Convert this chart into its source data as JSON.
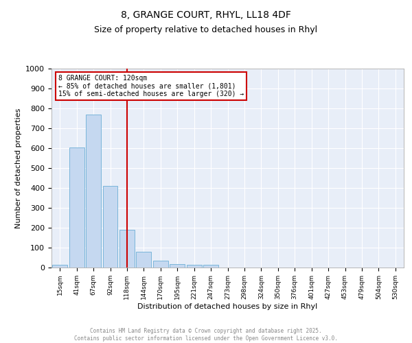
{
  "title_line1": "8, GRANGE COURT, RHYL, LL18 4DF",
  "title_line2": "Size of property relative to detached houses in Rhyl",
  "xlabel": "Distribution of detached houses by size in Rhyl",
  "ylabel": "Number of detached properties",
  "bar_labels": [
    "15sqm",
    "41sqm",
    "67sqm",
    "92sqm",
    "118sqm",
    "144sqm",
    "170sqm",
    "195sqm",
    "221sqm",
    "247sqm",
    "273sqm",
    "298sqm",
    "324sqm",
    "350sqm",
    "376sqm",
    "401sqm",
    "427sqm",
    "453sqm",
    "479sqm",
    "504sqm",
    "530sqm"
  ],
  "bar_values": [
    15,
    605,
    770,
    410,
    190,
    78,
    35,
    18,
    13,
    13,
    0,
    0,
    0,
    0,
    0,
    0,
    0,
    0,
    0,
    0,
    0
  ],
  "bar_color": "#c5d8f0",
  "bar_edge_color": "#6baed6",
  "vline_x": 4,
  "vline_color": "#cc0000",
  "annotation_text": "8 GRANGE COURT: 120sqm\n← 85% of detached houses are smaller (1,801)\n15% of semi-detached houses are larger (320) →",
  "annotation_box_color": "#ffffff",
  "annotation_box_edge": "#cc0000",
  "ylim": [
    0,
    1000
  ],
  "yticks": [
    0,
    100,
    200,
    300,
    400,
    500,
    600,
    700,
    800,
    900,
    1000
  ],
  "bg_color": "#e8eef8",
  "grid_color": "#ffffff",
  "footer_text": "Contains HM Land Registry data © Crown copyright and database right 2025.\nContains public sector information licensed under the Open Government Licence v3.0.",
  "footer_color": "#888888",
  "title_fontsize": 10,
  "subtitle_fontsize": 9
}
